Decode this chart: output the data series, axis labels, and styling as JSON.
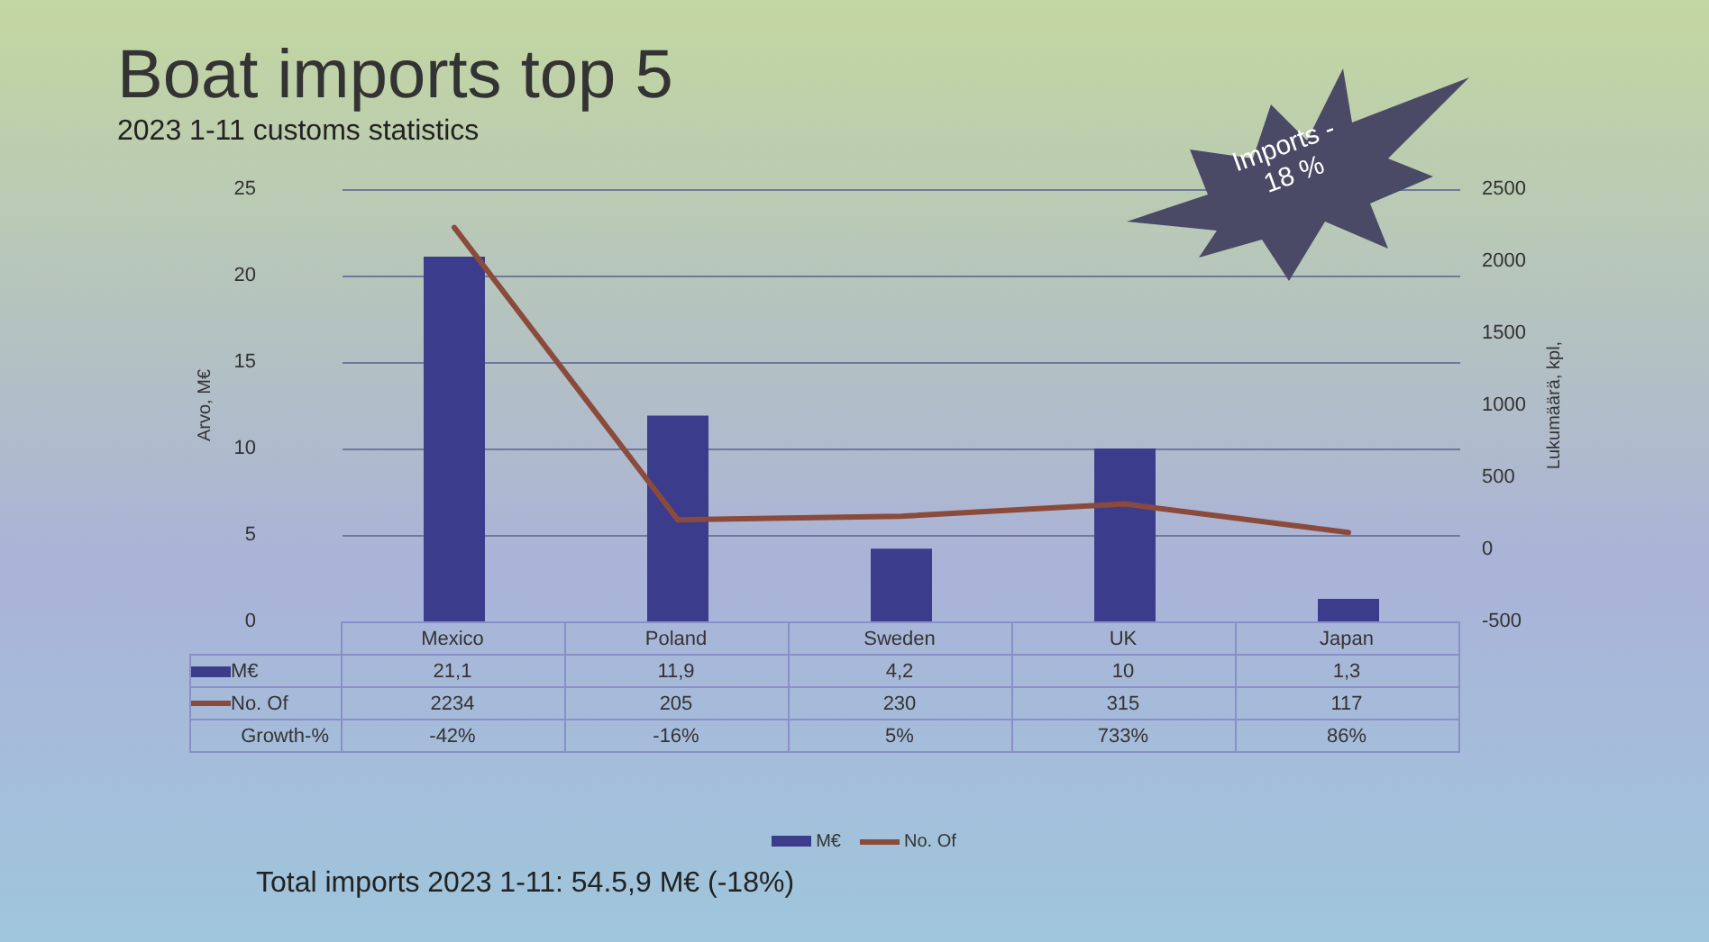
{
  "chart_data": {
    "type": "bar",
    "title": "Boat imports top 5",
    "subtitle": "2023 1-11 customs statistics",
    "ylabel": "Arvo, M€",
    "y2label": "Lukumäärä, kpl,",
    "categories": [
      "Mexico",
      "Poland",
      "Sweden",
      "UK",
      "Japan"
    ],
    "series": [
      {
        "name": "M€",
        "type": "bar",
        "color": "#3c3c8c",
        "values": [
          21.1,
          11.9,
          4.2,
          10,
          1.3
        ],
        "value_labels": [
          "21,1",
          "11,9",
          "4,2",
          "10",
          "1,3"
        ]
      },
      {
        "name": "No. Of",
        "type": "line",
        "axis": "y2",
        "color": "#8a4a3c",
        "values": [
          2234,
          205,
          230,
          315,
          117
        ],
        "value_labels": [
          "2234",
          "205",
          "230",
          "315",
          "117"
        ]
      }
    ],
    "ylim": [
      0,
      25
    ],
    "yticks": [
      0,
      5,
      10,
      15,
      20,
      25
    ],
    "y2lim": [
      -500,
      2500
    ],
    "y2ticks": [
      -500,
      0,
      500,
      1000,
      1500,
      2000,
      2500
    ],
    "grid": "y",
    "legend": "bottom",
    "marker": "none",
    "line_style": "solid",
    "annotations": [
      "Imports - 18 %",
      "Total imports 2023 1-11: 54.5,9 M€ (-18%)",
      "Growth-%",
      "-42%",
      "-16%",
      "5%",
      "733%",
      "86%"
    ]
  }
}
